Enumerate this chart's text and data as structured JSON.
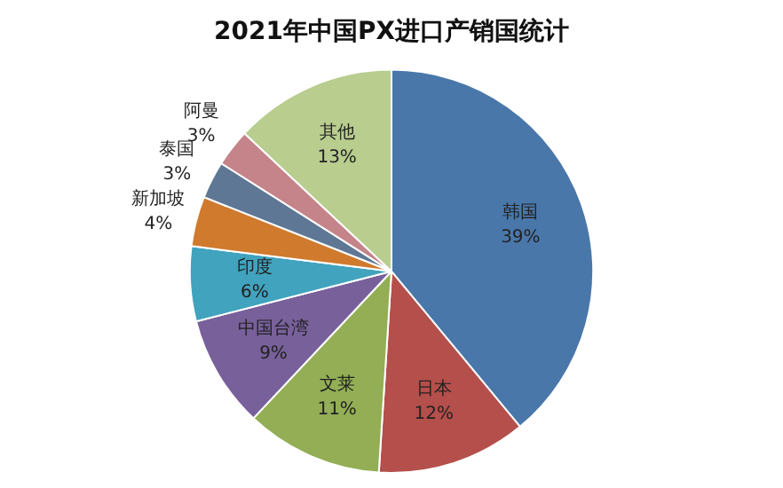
{
  "chart_data": {
    "type": "pie",
    "title": "2021年中国PX进口产销国统计",
    "categories": [
      "韩国",
      "日本",
      "文莱",
      "中国台湾",
      "印度",
      "新加坡",
      "泰国",
      "阿曼",
      "其他"
    ],
    "values": [
      39,
      12,
      11,
      9,
      6,
      4,
      3,
      3,
      13
    ],
    "colors": [
      "#4a77aa",
      "#b44f4b",
      "#93ae55",
      "#78609b",
      "#41a3bd",
      "#d07a2e",
      "#5e7794",
      "#c4848a",
      "#b8cd8e"
    ],
    "value_labels": [
      "39%",
      "12%",
      "11%",
      "9%",
      "6%",
      "4%",
      "3%",
      "3%",
      "13%"
    ],
    "legend": false
  }
}
